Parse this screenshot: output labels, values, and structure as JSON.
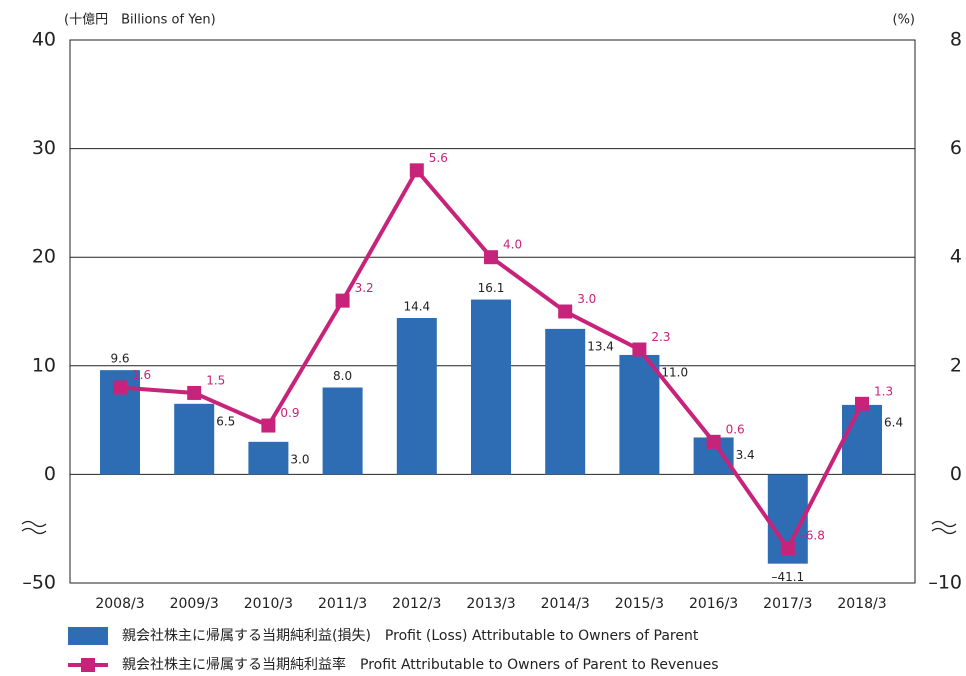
{
  "chart_data": {
    "type": "bar+line",
    "y_unit_label": "(十億円　Billions of Yen)",
    "y2_unit_label": "(%)",
    "categories": [
      "2008/3",
      "2009/3",
      "2010/3",
      "2011/3",
      "2012/3",
      "2013/3",
      "2014/3",
      "2015/3",
      "2016/3",
      "2017/3",
      "2018/3"
    ],
    "series": [
      {
        "name": "親会社株主に帰属する当期純利益(損失)　Profit (Loss) Attributable to Owners of Parent",
        "type": "bar",
        "color": "#2e6db4",
        "values": [
          9.6,
          6.5,
          3.0,
          8.0,
          14.4,
          16.1,
          13.4,
          11.0,
          3.4,
          -41.1,
          6.4
        ],
        "value_labels": [
          "9.6",
          "6.5",
          "3.0",
          "8.0",
          "14.4",
          "16.1",
          "13.4",
          "11.0",
          "3.4",
          "–41.1",
          "6.4"
        ]
      },
      {
        "name": "親会社株主に帰属する当期純利益率　Profit Attributable to Owners of Parent to Revenues",
        "type": "line",
        "axis": "y2",
        "color": "#c8237a",
        "values": [
          1.6,
          1.5,
          0.9,
          3.2,
          5.6,
          4.0,
          3.0,
          2.3,
          0.6,
          -6.8,
          1.3
        ],
        "value_labels": [
          "1.6",
          "1.5",
          "0.9",
          "3.2",
          "5.6",
          "4.0",
          "3.0",
          "2.3",
          "0.6",
          "–6.8",
          "1.3"
        ]
      }
    ],
    "ylim": [
      -50,
      40
    ],
    "yticks": [
      {
        "value": -50,
        "label": "–50"
      },
      0,
      10,
      20,
      30,
      40
    ],
    "y2lim": [
      -10,
      8
    ],
    "y2ticks": [
      {
        "value": -10,
        "label": "–10"
      },
      0,
      2,
      4,
      6,
      8
    ],
    "grid": true
  }
}
